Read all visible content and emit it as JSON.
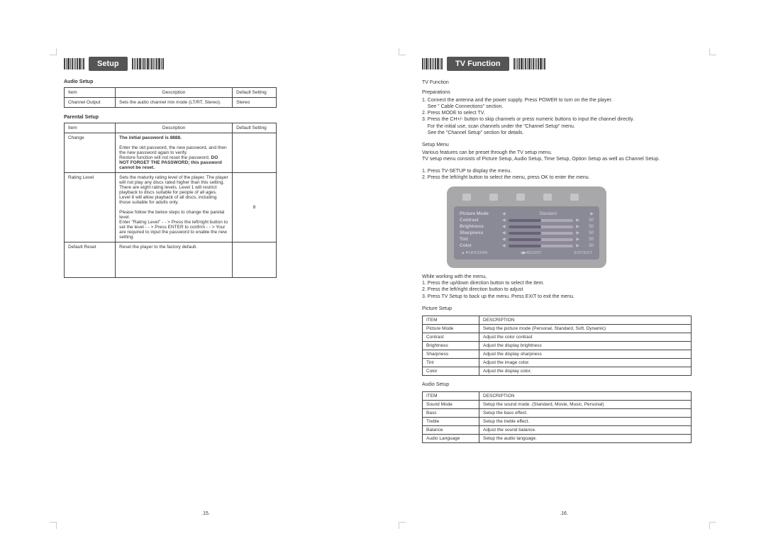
{
  "left": {
    "title": "Setup",
    "audio_setup_label": "Audio Setup",
    "audio_table": {
      "headers": [
        "Item",
        "Description",
        "Default Setting"
      ],
      "row": [
        "Channel Output",
        "Sets the audio channel mix mode  (LT/RT, Stereo).",
        "Stereo"
      ]
    },
    "parental_label": "Parental Setup",
    "parental_table": {
      "headers": [
        "Item",
        "Description",
        "Default Setting"
      ],
      "change_item": "Change",
      "change_line1": "The initial password is 8888.",
      "change_line2": "Enter the old password, the new password, and then the new password again to verify.",
      "change_line3a": "Restore function will not reset the password.  ",
      "change_line3b": "DO NOT FORGET THE PASSWORD; this password cannot be reset.",
      "rating_item": "Rating Level",
      "rating_default": "8",
      "rating_line1": "Sets the maturity rating level of the player. The player will not play any discs rated higher than this setting.",
      "rating_line2": "There are eight rating levels. Level 1 will restrict playback to discs suitable for people of all ages. Level 8 will allow playback of all discs, including those suitable for adults only.",
      "rating_line3": "Please follow the below steps to change the paretal level.",
      "rating_line4": "Enter \"Rating Level\" - - > Press the left/right button to set the level - - > Press ENTER to confirm - - > Your are required to input the password to enable the new setting.",
      "default_item": "Default Reset",
      "default_desc": "Reset the player to the factory default."
    },
    "page_num": ".15."
  },
  "right": {
    "title": "TV Function",
    "tv_function_label": "TV Function",
    "prep_label": "Preparations",
    "prep_1": "1. Connect the antenna and the power supply. Press POWER to turn on the the player.",
    "prep_1b": "    See \" Cable Connections\" section.",
    "prep_2": "2. Press MODE to select TV.",
    "prep_3": "3. Press the CH+/- button to skip channels or press numeric buttons to input the channel directly.",
    "prep_3b": "    For the initial use, scan channels under the \"Channel Setup\" menu.",
    "prep_3c": "    See the \"Channel Setup\" section for details.",
    "setup_menu_label": "Setup Menu",
    "setup_menu_1": "Various features can be preset through the TV setup menu.",
    "setup_menu_2": "TV setup menu consists of Picture Setup, Audio Setup, Time Setup, Option Setup as well as Channel Setup.",
    "nav_1": "1. Press TV-SETUP to display the menu.",
    "nav_2": "2. Press the left/right button to select the menu, press OK to enter the menu.",
    "osd": {
      "row0_label": "Picture  Mode",
      "row0_val": "Standard",
      "rows": [
        {
          "label": "Contrast",
          "val": "50"
        },
        {
          "label": "Brightness",
          "val": "50"
        },
        {
          "label": "Sharpness",
          "val": "50"
        },
        {
          "label": "Tint",
          "val": "50"
        },
        {
          "label": "Color",
          "val": "50"
        }
      ],
      "foot_left": "▲▼UP/DOWN",
      "foot_mid": "◀▶ADJUST",
      "foot_right": "EXIT:EXIT"
    },
    "while_label": "While working with the menu,",
    "while_1": "1. Press the up/down direction button to select the item.",
    "while_2": "2. Press the left/right direction button to adjust",
    "while_3": "3. Press TV Setup to back up the menu. Press EXIT to exit the menu.",
    "picture_setup_label": "Picture Setup",
    "picture_table": {
      "h1": "ITEM",
      "h2": "DESCRIPTION",
      "rows": [
        [
          "Picture Mode",
          "Setup the picture mode (Personal, Standard, Soft, Dynamic)"
        ],
        [
          "Contrast",
          "Adjust the color contrast"
        ],
        [
          "Brightness",
          "Adjust the display brightness"
        ],
        [
          "Sharpness",
          "Adjust the display sharpness"
        ],
        [
          "Tint",
          "Adjust the image color."
        ],
        [
          "Color",
          "Adjust the display color."
        ]
      ]
    },
    "audio_setup_label": "Audio Setup",
    "audio_table": {
      "h1": "ITEM",
      "h2": "DESCRIPTION",
      "rows": [
        [
          "Sound Mode",
          "Setup the sound mode. (Standard, Movie, Music, Personal)"
        ],
        [
          "Bass",
          "Setup the bass effect."
        ],
        [
          "Treble",
          "Setup the treble effect."
        ],
        [
          "Balance",
          "Adjust the sound balance."
        ],
        [
          "Audio Language",
          "Setup the audio language."
        ]
      ]
    },
    "page_num": ".16."
  }
}
